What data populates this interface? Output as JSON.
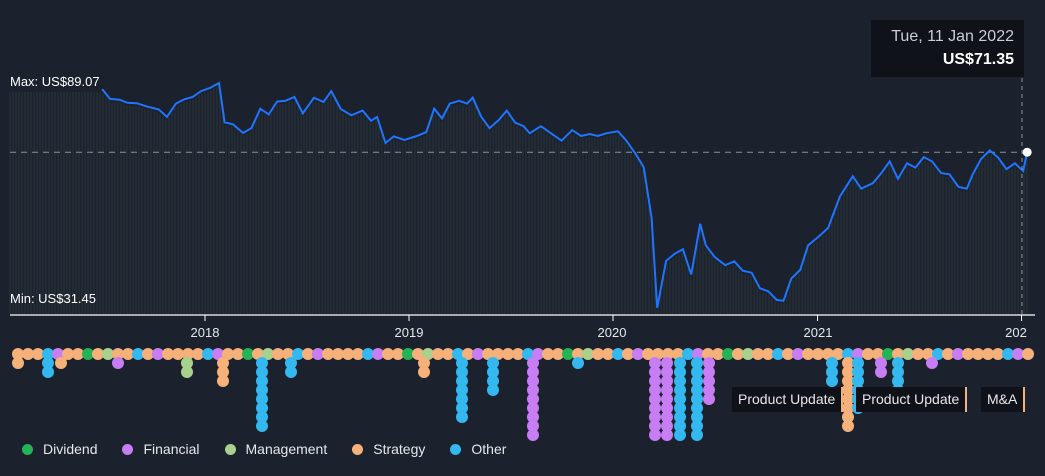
{
  "chart_data": {
    "type": "line",
    "series": [
      {
        "values": [
          [
            "2017-07-01",
            87.5
          ],
          [
            "2017-07-15",
            85.0
          ],
          [
            "2017-08-01",
            84.8
          ],
          [
            "2017-08-15",
            84.0
          ],
          [
            "2017-09-01",
            83.9
          ],
          [
            "2017-09-20",
            83.0
          ],
          [
            "2017-10-10",
            82.3
          ],
          [
            "2017-10-25",
            80.4
          ],
          [
            "2017-11-10",
            83.8
          ],
          [
            "2017-11-25",
            84.9
          ],
          [
            "2017-12-10",
            85.5
          ],
          [
            "2017-12-25",
            87.0
          ],
          [
            "2018-01-10",
            87.8
          ],
          [
            "2018-01-26",
            89.07
          ],
          [
            "2018-02-05",
            79.0
          ],
          [
            "2018-02-20",
            78.5
          ],
          [
            "2018-03-10",
            76.3
          ],
          [
            "2018-03-25",
            77.5
          ],
          [
            "2018-04-10",
            82.5
          ],
          [
            "2018-04-25",
            81.0
          ],
          [
            "2018-05-10",
            84.3
          ],
          [
            "2018-05-25",
            84.5
          ],
          [
            "2018-06-10",
            85.5
          ],
          [
            "2018-06-25",
            81.3
          ],
          [
            "2018-07-15",
            85.3
          ],
          [
            "2018-08-01",
            84.2
          ],
          [
            "2018-08-15",
            87.0
          ],
          [
            "2018-09-01",
            82.4
          ],
          [
            "2018-09-20",
            80.8
          ],
          [
            "2018-10-10",
            82.0
          ],
          [
            "2018-10-25",
            79.4
          ],
          [
            "2018-11-05",
            80.4
          ],
          [
            "2018-11-20",
            73.7
          ],
          [
            "2018-12-05",
            75.4
          ],
          [
            "2018-12-24",
            74.5
          ],
          [
            "2019-01-15",
            75.5
          ],
          [
            "2019-02-01",
            76.5
          ],
          [
            "2019-02-15",
            82.5
          ],
          [
            "2019-03-01",
            80.0
          ],
          [
            "2019-03-15",
            83.8
          ],
          [
            "2019-04-01",
            84.5
          ],
          [
            "2019-04-15",
            83.8
          ],
          [
            "2019-04-25",
            85.3
          ],
          [
            "2019-05-10",
            80.5
          ],
          [
            "2019-05-25",
            77.5
          ],
          [
            "2019-06-10",
            79.5
          ],
          [
            "2019-06-25",
            82.0
          ],
          [
            "2019-07-10",
            78.9
          ],
          [
            "2019-07-25",
            78.0
          ],
          [
            "2019-08-05",
            76.2
          ],
          [
            "2019-08-25",
            78.0
          ],
          [
            "2019-09-15",
            75.9
          ],
          [
            "2019-10-01",
            74.3
          ],
          [
            "2019-10-20",
            77.0
          ],
          [
            "2019-11-05",
            75.5
          ],
          [
            "2019-11-20",
            76.0
          ],
          [
            "2019-12-05",
            75.5
          ],
          [
            "2019-12-20",
            76.2
          ],
          [
            "2020-01-10",
            76.7
          ],
          [
            "2020-01-25",
            74.3
          ],
          [
            "2020-02-10",
            71.0
          ],
          [
            "2020-02-25",
            67.5
          ],
          [
            "2020-03-10",
            54.5
          ],
          [
            "2020-03-20",
            31.45
          ],
          [
            "2020-04-05",
            43.5
          ],
          [
            "2020-04-20",
            45.3
          ],
          [
            "2020-05-05",
            46.5
          ],
          [
            "2020-05-20",
            40.0
          ],
          [
            "2020-06-05",
            53.0
          ],
          [
            "2020-06-15",
            47.5
          ],
          [
            "2020-07-01",
            44.5
          ],
          [
            "2020-07-20",
            42.4
          ],
          [
            "2020-08-05",
            43.4
          ],
          [
            "2020-08-20",
            41.0
          ],
          [
            "2020-09-05",
            40.5
          ],
          [
            "2020-09-20",
            36.5
          ],
          [
            "2020-10-05",
            35.7
          ],
          [
            "2020-10-20",
            33.5
          ],
          [
            "2020-11-01",
            33.3
          ],
          [
            "2020-11-15",
            39.0
          ],
          [
            "2020-12-01",
            41.2
          ],
          [
            "2020-12-15",
            47.5
          ],
          [
            "2021-01-05",
            50.0
          ],
          [
            "2021-01-20",
            52.0
          ],
          [
            "2021-02-10",
            60.0
          ],
          [
            "2021-03-05",
            65.2
          ],
          [
            "2021-03-20",
            62.0
          ],
          [
            "2021-04-10",
            63.4
          ],
          [
            "2021-04-25",
            66.0
          ],
          [
            "2021-05-10",
            69.0
          ],
          [
            "2021-05-25",
            64.5
          ],
          [
            "2021-06-10",
            68.5
          ],
          [
            "2021-06-25",
            67.4
          ],
          [
            "2021-07-10",
            70.1
          ],
          [
            "2021-07-25",
            69.0
          ],
          [
            "2021-08-10",
            66.0
          ],
          [
            "2021-08-25",
            65.7
          ],
          [
            "2021-09-10",
            62.5
          ],
          [
            "2021-09-25",
            62.0
          ],
          [
            "2021-10-05",
            65.5
          ],
          [
            "2021-10-20",
            69.5
          ],
          [
            "2021-11-05",
            71.8
          ],
          [
            "2021-11-20",
            70.0
          ],
          [
            "2021-12-05",
            67.0
          ],
          [
            "2021-12-20",
            68.5
          ],
          [
            "2022-01-04",
            66.5
          ],
          [
            "2022-01-11",
            71.35
          ]
        ]
      }
    ],
    "tick_labels": [
      "2018",
      "2019",
      "2020",
      "2021",
      "202"
    ],
    "max_label": "Max: US$89.07",
    "min_label": "Min: US$31.45",
    "ylim": [
      31.45,
      89.07
    ],
    "reference_line_value": 71.35,
    "line_color": "#1f75fe",
    "grid": false,
    "legend_placement": "bottom-left",
    "legend": [
      {
        "label": "Dividend",
        "color": "#22b455"
      },
      {
        "label": "Financial",
        "color": "#c77df3"
      },
      {
        "label": "Management",
        "color": "#a9d18e"
      },
      {
        "label": "Strategy",
        "color": "#f6b07a"
      },
      {
        "label": "Other",
        "color": "#33b8f0"
      }
    ]
  },
  "tooltip": {
    "date": "Tue, 11 Jan 2022",
    "price": "US$71.35"
  },
  "event_tags": [
    "Product Update",
    "Product Update",
    "M&A"
  ]
}
